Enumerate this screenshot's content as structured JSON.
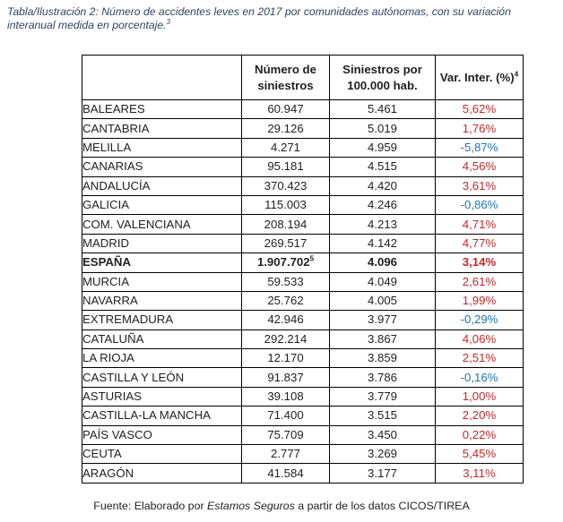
{
  "caption": {
    "text": "Tabla/Ilustración 2: Número de accidentes leves en 2017 por comunidades autónomas, con su variación interanual medida en porcentaje.",
    "note": "3"
  },
  "table": {
    "headers": {
      "region": "",
      "count": "Número de siniestros",
      "rate": "Siniestros por 100.000 hab.",
      "var": "Var. Inter. (%)",
      "var_note": "4"
    },
    "rows": [
      {
        "name": "BALEARES",
        "count": "60.947",
        "rate": "5.461",
        "var": "5,62%",
        "sign": "pos"
      },
      {
        "name": "CANTABRIA",
        "count": "29.126",
        "rate": "5.019",
        "var": "1,76%",
        "sign": "pos"
      },
      {
        "name": "MELILLA",
        "count": "4.271",
        "rate": "4.959",
        "var": "-5,87%",
        "sign": "neg"
      },
      {
        "name": "CANARIAS",
        "count": "95.181",
        "rate": "4.515",
        "var": "4,56%",
        "sign": "pos"
      },
      {
        "name": "ANDALUCÍA",
        "count": "370.423",
        "rate": "4.420",
        "var": "3,61%",
        "sign": "pos"
      },
      {
        "name": "GALICIA",
        "count": "115.003",
        "rate": "4.246",
        "var": "-0,86%",
        "sign": "neg"
      },
      {
        "name": "COM. VALENCIANA",
        "count": "208.194",
        "rate": "4.213",
        "var": "4,71%",
        "sign": "pos"
      },
      {
        "name": "MADRID",
        "count": "269.517",
        "rate": "4.142",
        "var": "4,77%",
        "sign": "pos"
      },
      {
        "name": "ESPAÑA",
        "count": "1.907.702",
        "count_note": "5",
        "rate": "4.096",
        "var": "3,14%",
        "sign": "pos",
        "bold": true
      },
      {
        "name": "MURCIA",
        "count": "59.533",
        "rate": "4.049",
        "var": "2,61%",
        "sign": "pos"
      },
      {
        "name": "NAVARRA",
        "count": "25.762",
        "rate": "4.005",
        "var": "1,99%",
        "sign": "pos"
      },
      {
        "name": "EXTREMADURA",
        "count": "42.946",
        "rate": "3.977",
        "var": "-0,29%",
        "sign": "neg"
      },
      {
        "name": "CATALUÑA",
        "count": "292.214",
        "rate": "3.867",
        "var": "4,06%",
        "sign": "pos"
      },
      {
        "name": "LA RIOJA",
        "count": "12.170",
        "rate": "3.859",
        "var": "2,51%",
        "sign": "pos"
      },
      {
        "name": "CASTILLA Y LEÓN",
        "count": "91.837",
        "rate": "3.786",
        "var": "-0,16%",
        "sign": "neg"
      },
      {
        "name": "ASTURIAS",
        "count": "39.108",
        "rate": "3.779",
        "var": "1,00%",
        "sign": "pos"
      },
      {
        "name": "CASTILLA-LA MANCHA",
        "count": "71.400",
        "rate": "3.515",
        "var": "2,20%",
        "sign": "pos"
      },
      {
        "name": "PAÍS VASCO",
        "count": "75.709",
        "rate": "3.450",
        "var": "0,22%",
        "sign": "pos"
      },
      {
        "name": "CEUTA",
        "count": "2.777",
        "rate": "3.269",
        "var": "5,45%",
        "sign": "pos"
      },
      {
        "name": "ARAGÓN",
        "count": "41.584",
        "rate": "3.177",
        "var": "3,11%",
        "sign": "pos"
      }
    ]
  },
  "source": {
    "prefix": "Fuente: Elaborado por ",
    "brand": "Estamos Seguros",
    "suffix": " a partir de los datos CICOS/TIREA"
  },
  "colors": {
    "positive": "#c62828",
    "negative": "#1e74b8",
    "caption": "#2c4466"
  }
}
